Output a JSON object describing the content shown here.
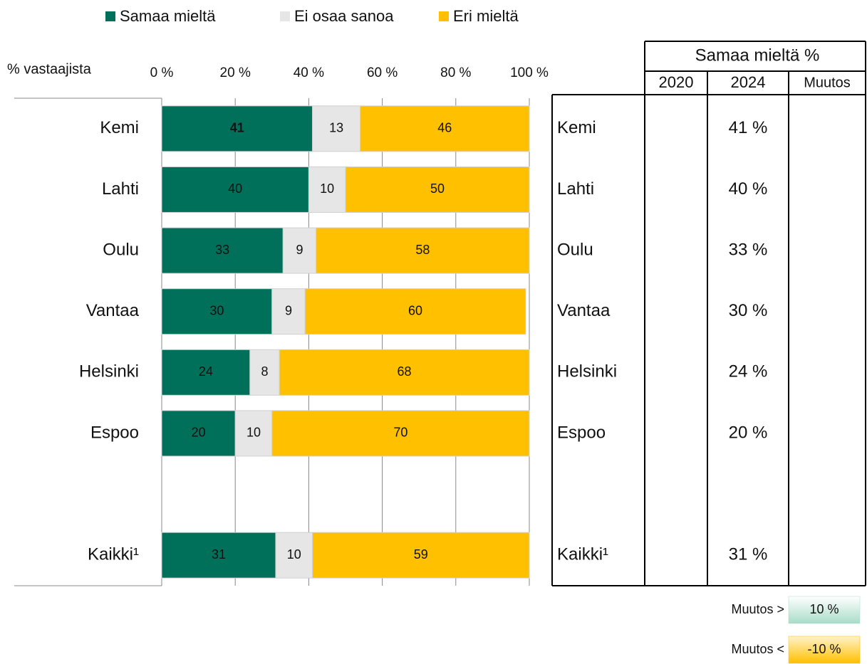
{
  "chart_data": {
    "type": "stacked_bar_horizontal",
    "axis_label": "% vastaajista",
    "categories": [
      "Kemi",
      "Lahti",
      "Oulu",
      "Vantaa",
      "Helsinki",
      "Espoo",
      null,
      "Kaikki¹"
    ],
    "series": [
      {
        "name": "Samaa mieltä",
        "color": "#00705a",
        "label_color": "#ffffff",
        "values": [
          41,
          40,
          33,
          30,
          24,
          20,
          null,
          31
        ]
      },
      {
        "name": "Ei osaa sanoa",
        "color": "#e6e6e6",
        "label_color": "#222222",
        "values": [
          13,
          10,
          9,
          9,
          8,
          10,
          null,
          10
        ]
      },
      {
        "name": "Eri mieltä",
        "color": "#ffc000",
        "label_color": "#222222",
        "values": [
          46,
          50,
          58,
          60,
          68,
          70,
          null,
          59
        ]
      }
    ],
    "xlim": [
      0,
      100
    ],
    "xticks": [
      {
        "value": 0,
        "label": "0 %"
      },
      {
        "value": 20,
        "label": "20 %"
      },
      {
        "value": 40,
        "label": "40 %"
      },
      {
        "value": 60,
        "label": "60 %"
      },
      {
        "value": 80,
        "label": "80 %"
      },
      {
        "value": 100,
        "label": "100 %"
      }
    ],
    "grid": true
  },
  "table": {
    "title": "Samaa mieltä %",
    "columns": [
      "2020",
      "2024",
      "Muutos"
    ],
    "rows": [
      {
        "label": "Kemi",
        "pct_2024": "41 %"
      },
      {
        "label": "Lahti",
        "pct_2024": "40 %"
      },
      {
        "label": "Oulu",
        "pct_2024": "33 %"
      },
      {
        "label": "Vantaa",
        "pct_2024": "30 %"
      },
      {
        "label": "Helsinki",
        "pct_2024": "24 %"
      },
      {
        "label": "Espoo",
        "pct_2024": "20 %"
      },
      null,
      {
        "label": "Kaikki¹",
        "pct_2024": "31 %"
      }
    ]
  },
  "change_legend": [
    {
      "label": "Muutos >",
      "value": "10 %",
      "color": "#a8dcc8"
    },
    {
      "label": "Muutos <",
      "value": "-10 %",
      "color": "#ffc000"
    }
  ]
}
